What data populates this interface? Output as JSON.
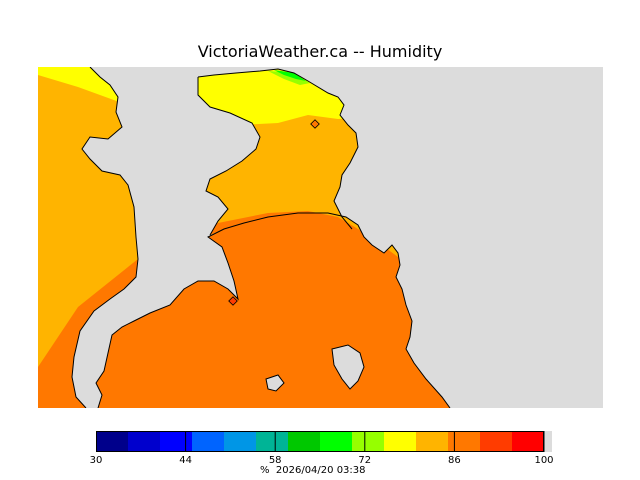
{
  "header": {
    "title": "VictoriaWeather.ca -- Humidity"
  },
  "legend": {
    "unit": "%",
    "ticks": [
      "30",
      "44",
      "58",
      "72",
      "86",
      "100"
    ],
    "bins": [
      {
        "from": 30,
        "to": 35,
        "color": "#00008b"
      },
      {
        "from": 35,
        "to": 40,
        "color": "#0000cd"
      },
      {
        "from": 40,
        "to": 45,
        "color": "#0000ff"
      },
      {
        "from": 45,
        "to": 50,
        "color": "#0064ff"
      },
      {
        "from": 50,
        "to": 55,
        "color": "#0096e6"
      },
      {
        "from": 55,
        "to": 60,
        "color": "#00b496"
      },
      {
        "from": 60,
        "to": 65,
        "color": "#00c800"
      },
      {
        "from": 65,
        "to": 70,
        "color": "#00ff00"
      },
      {
        "from": 70,
        "to": 75,
        "color": "#96ff00"
      },
      {
        "from": 75,
        "to": 80,
        "color": "#ffff00"
      },
      {
        "from": 80,
        "to": 85,
        "color": "#ffb400"
      },
      {
        "from": 85,
        "to": 90,
        "color": "#ff7800"
      },
      {
        "from": 90,
        "to": 95,
        "color": "#ff3c00"
      },
      {
        "from": 95,
        "to": 100,
        "color": "#ff0000"
      }
    ]
  },
  "footer": {
    "timestamp": "2026/04/20 03:38"
  },
  "colors": {
    "water": "#dcdcdc",
    "yellow": "#ffff00",
    "amber": "#ffb400",
    "orange": "#ff7800",
    "green": "#00ff00",
    "station": "#ff3c00"
  },
  "map": {
    "stations": [
      {
        "name": "station-north",
        "value_color": "#ff7800"
      },
      {
        "name": "station-south",
        "value_color": "#ff3c00"
      }
    ]
  }
}
